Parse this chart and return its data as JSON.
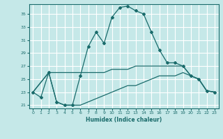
{
  "xlabel": "Humidex (Indice chaleur)",
  "bg_color": "#c5e8e8",
  "grid_color": "#ffffff",
  "line_color": "#1a6b6b",
  "xlim": [
    -0.5,
    23.5
  ],
  "ylim": [
    20.5,
    36.5
  ],
  "xticks": [
    0,
    1,
    2,
    3,
    4,
    5,
    6,
    7,
    8,
    9,
    10,
    11,
    12,
    13,
    14,
    15,
    16,
    17,
    18,
    19,
    20,
    21,
    22,
    23
  ],
  "yticks": [
    21,
    23,
    25,
    27,
    29,
    31,
    33,
    35
  ],
  "line1_x": [
    0,
    1,
    2,
    3,
    4,
    5,
    6,
    7,
    8,
    9,
    10,
    11,
    12,
    13,
    14,
    15,
    16,
    17,
    18,
    19,
    20,
    21,
    22,
    23
  ],
  "line1_y": [
    23.0,
    22.2,
    26.0,
    21.5,
    21.0,
    21.0,
    25.5,
    30.0,
    32.2,
    30.5,
    34.5,
    36.0,
    36.2,
    35.5,
    35.0,
    32.2,
    29.5,
    27.5,
    27.5,
    27.0,
    25.5,
    25.0,
    23.2,
    23.0
  ],
  "line2_x": [
    0,
    2,
    3,
    4,
    5,
    6,
    7,
    8,
    9,
    10,
    11,
    12,
    13,
    14,
    15,
    16,
    17,
    18,
    19,
    20,
    21,
    22,
    23
  ],
  "line2_y": [
    23.0,
    26.0,
    26.0,
    26.0,
    26.0,
    26.0,
    26.0,
    26.0,
    26.0,
    26.5,
    26.5,
    26.5,
    27.0,
    27.0,
    27.0,
    27.0,
    27.0,
    27.0,
    27.0,
    25.5,
    25.0,
    23.2,
    23.0
  ],
  "line3_x": [
    0,
    2,
    3,
    4,
    5,
    6,
    7,
    8,
    9,
    10,
    11,
    12,
    13,
    14,
    15,
    16,
    17,
    18,
    19,
    20,
    21,
    22,
    23
  ],
  "line3_y": [
    23.0,
    26.0,
    21.5,
    21.0,
    21.0,
    21.0,
    21.5,
    22.0,
    22.5,
    23.0,
    23.5,
    24.0,
    24.0,
    24.5,
    25.0,
    25.5,
    25.5,
    25.5,
    26.0,
    25.5,
    25.0,
    23.2,
    23.0
  ],
  "marker": "D",
  "markersize": 2.0,
  "linewidth": 0.9
}
